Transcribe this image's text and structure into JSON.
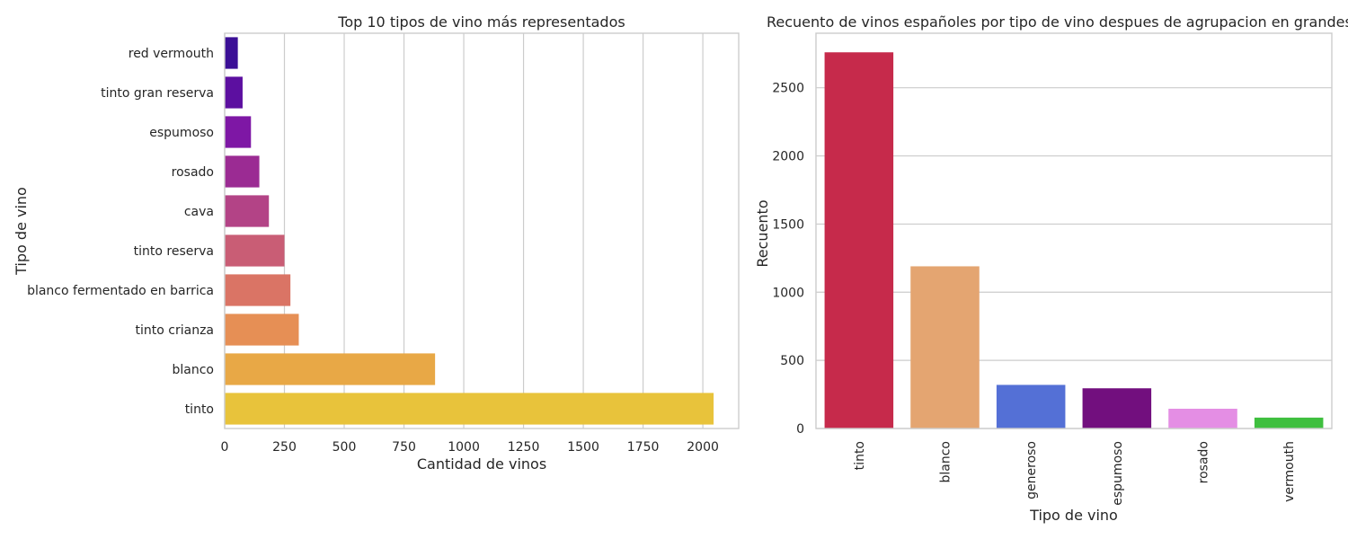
{
  "chart_data": [
    {
      "type": "bar",
      "orientation": "horizontal",
      "title": "Top 10 tipos de vino más representados",
      "xlabel": "Cantidad de vinos",
      "ylabel": "Tipo de vino",
      "xlim": [
        0,
        2150
      ],
      "xticks": [
        "0",
        "250",
        "500",
        "750",
        "1000",
        "1250",
        "1500",
        "1750",
        "2000"
      ],
      "grid": "vertical",
      "categories": [
        "red vermouth",
        "tinto gran reserva",
        "espumoso",
        "rosado",
        "cava",
        "tinto reserva",
        "blanco fermentado en barrica",
        "tinto crianza",
        "blanco",
        "tinto"
      ],
      "values": [
        55,
        75,
        110,
        145,
        185,
        250,
        275,
        310,
        880,
        2045
      ],
      "colors": [
        "#3b0f96",
        "#5c0fa0",
        "#7e17a5",
        "#9b2b93",
        "#b34386",
        "#c95d75",
        "#da7465",
        "#e68f55",
        "#e8a846",
        "#e8c33b"
      ]
    },
    {
      "type": "bar",
      "orientation": "vertical",
      "title": "Recuento de vinos españoles por tipo de vino despues de agrupacion en grandes categ",
      "xlabel": "Tipo de vino",
      "ylabel": "Recuento",
      "ylim": [
        0,
        2900
      ],
      "yticks": [
        "0",
        "500",
        "1000",
        "1500",
        "2000",
        "2500"
      ],
      "grid": "horizontal",
      "categories": [
        "tinto",
        "blanco",
        "generoso",
        "espumoso",
        "rosado",
        "vermouth"
      ],
      "values": [
        2760,
        1190,
        320,
        295,
        145,
        80
      ],
      "colors": [
        "#c62a4b",
        "#e4a571",
        "#5470d6",
        "#720f7e",
        "#e48ee4",
        "#3fbf3f"
      ]
    }
  ]
}
